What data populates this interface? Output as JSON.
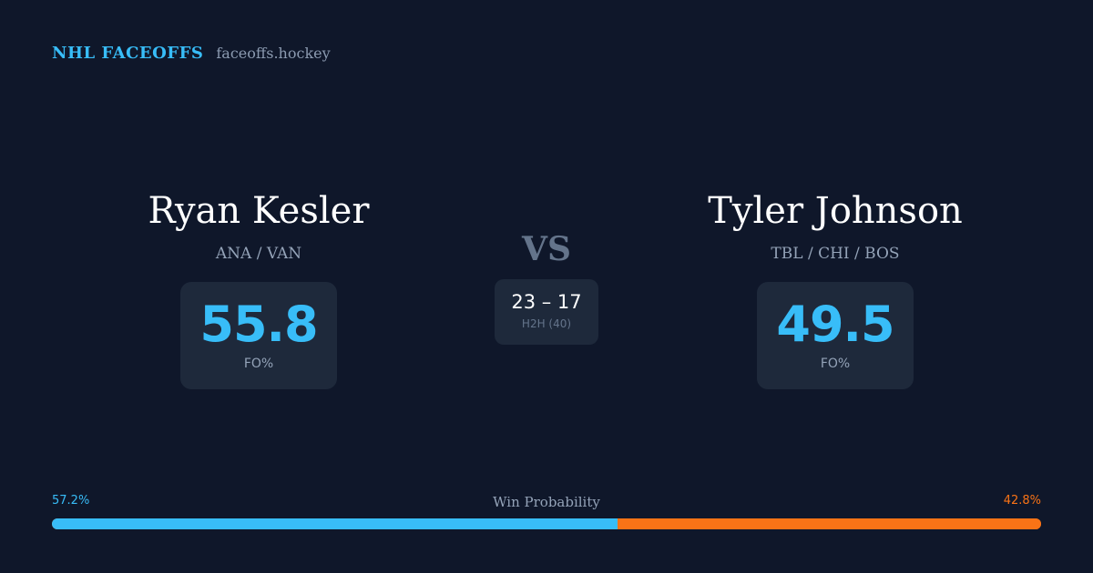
{
  "brand": {
    "title": "NHL FACEOFFS",
    "domain": "faceoffs.hockey"
  },
  "player_left": {
    "name": "Ryan Kesler",
    "teams": "ANA / VAN",
    "fo_value": "55.8",
    "fo_label": "FO%"
  },
  "player_right": {
    "name": "Tyler Johnson",
    "teams": "TBL / CHI / BOS",
    "fo_value": "49.5",
    "fo_label": "FO%"
  },
  "versus": {
    "label": "VS",
    "h2h_score": "23 – 17",
    "h2h_label": "H2H (40)"
  },
  "win_probability": {
    "title": "Win Probability",
    "left_text": "57.2%",
    "right_text": "42.8%",
    "left_value": 57.2,
    "right_value": 42.8,
    "left_color": "#38bdf8",
    "right_color": "#f97316"
  },
  "colors": {
    "background": "#0f172a",
    "card": "#1e293b",
    "accent": "#38bdf8",
    "accent_secondary": "#f97316"
  }
}
